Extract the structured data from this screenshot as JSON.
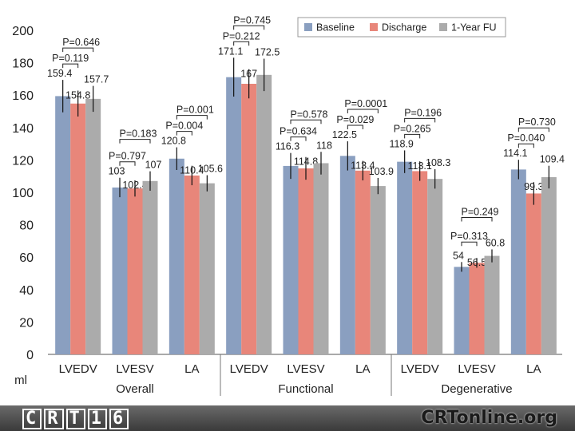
{
  "chart_data": {
    "type": "bar",
    "ylabel": "ml",
    "ylim": [
      0,
      200
    ],
    "yticks": [
      0,
      20,
      40,
      60,
      80,
      100,
      120,
      140,
      160,
      180,
      200
    ],
    "legend_position": "top-right",
    "groups": [
      {
        "name": "Overall",
        "categories": [
          "LVEDV",
          "LVESV",
          "LA"
        ]
      },
      {
        "name": "Functional",
        "categories": [
          "LVEDV",
          "LVESV",
          "LA"
        ]
      },
      {
        "name": "Degenerative",
        "categories": [
          "LVEDV",
          "LVESV",
          "LA"
        ]
      }
    ],
    "series": [
      {
        "name": "Baseline",
        "color": "#8a9fc0",
        "values": [
          159.4,
          103,
          120.8,
          171.1,
          116.3,
          122.5,
          118.9,
          54,
          114.1
        ],
        "labels": [
          "159.4",
          "103",
          "120.8",
          "171.1",
          "116.3",
          "122.5",
          "118.9",
          "54",
          "114.1"
        ],
        "errors": [
          10,
          6,
          7,
          12,
          8,
          9,
          7,
          3,
          6
        ]
      },
      {
        "name": "Discharge",
        "color": "#e8867a",
        "values": [
          154.8,
          102.4,
          110.4,
          167,
          114.8,
          113.4,
          113.1,
          56.5,
          99.3
        ],
        "labels": [
          "154.8",
          "102.4",
          "110.4",
          "167",
          "114.8",
          "113.4",
          "113.1",
          "56.5",
          "99.3"
        ],
        "errors": [
          8,
          5,
          6,
          9,
          7,
          6,
          6,
          3,
          7
        ]
      },
      {
        "name": "1-Year FU",
        "color": "#ababab",
        "values": [
          157.7,
          107,
          105.6,
          172.5,
          118,
          103.9,
          108.3,
          60.8,
          109.4
        ],
        "labels": [
          "157.7",
          "107",
          "105.6",
          "172.5",
          "118",
          "103.9",
          "108.3",
          "60.8",
          "109.4"
        ],
        "errors": [
          8,
          6,
          5,
          10,
          7,
          5,
          6,
          4,
          7
        ]
      }
    ],
    "pvalues": [
      {
        "cat": 0,
        "from": 0,
        "to": 1,
        "label": "P=0.119",
        "level": 0
      },
      {
        "cat": 0,
        "from": 0,
        "to": 2,
        "label": "P=0.646",
        "level": 1
      },
      {
        "cat": 1,
        "from": 0,
        "to": 1,
        "label": "P=0.797",
        "level": 0
      },
      {
        "cat": 1,
        "from": 0,
        "to": 2,
        "label": "P=0.183",
        "level": 1
      },
      {
        "cat": 2,
        "from": 0,
        "to": 1,
        "label": "P=0.004",
        "level": 0
      },
      {
        "cat": 2,
        "from": 0,
        "to": 2,
        "label": "P=0.001",
        "level": 1
      },
      {
        "cat": 3,
        "from": 0,
        "to": 1,
        "label": "P=0.212",
        "level": 0
      },
      {
        "cat": 3,
        "from": 0,
        "to": 2,
        "label": "P=0.745",
        "level": 1
      },
      {
        "cat": 4,
        "from": 0,
        "to": 1,
        "label": "P=0.634",
        "level": 0
      },
      {
        "cat": 4,
        "from": 0,
        "to": 2,
        "label": "P=0.578",
        "level": 1
      },
      {
        "cat": 5,
        "from": 0,
        "to": 1,
        "label": "P=0.029",
        "level": 0
      },
      {
        "cat": 5,
        "from": 0,
        "to": 2,
        "label": "P=0.0001",
        "level": 1
      },
      {
        "cat": 6,
        "from": 0,
        "to": 1,
        "label": "P=0.265",
        "level": 0
      },
      {
        "cat": 6,
        "from": 0,
        "to": 2,
        "label": "P=0.196",
        "level": 1
      },
      {
        "cat": 7,
        "from": 0,
        "to": 1,
        "label": "P=0.313",
        "level": 0
      },
      {
        "cat": 7,
        "from": 0,
        "to": 2,
        "label": "P=0.249",
        "level": 1
      },
      {
        "cat": 8,
        "from": 0,
        "to": 1,
        "label": "P=0.040",
        "level": 0
      },
      {
        "cat": 8,
        "from": 0,
        "to": 2,
        "label": "P=0.730",
        "level": 1
      }
    ]
  },
  "footer": {
    "left_logo_letters": [
      "C",
      "R",
      "T",
      "1",
      "6"
    ],
    "right_logo": "CRTonline.org"
  }
}
